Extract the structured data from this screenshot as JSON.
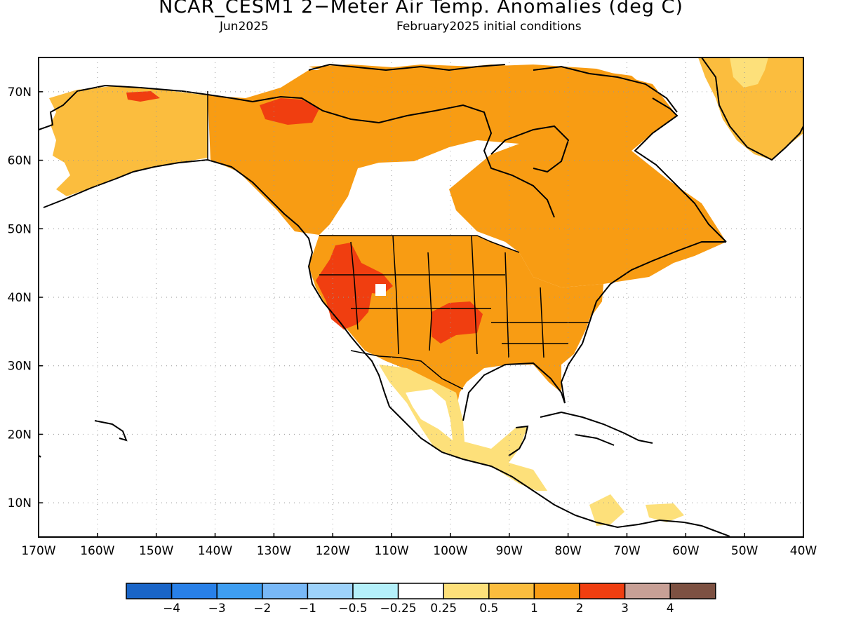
{
  "header": {
    "title": "NCAR_CESM1 2−Meter Air Temp. Anomalies (deg C)",
    "subtitle_left": "Jun2025",
    "subtitle_right": "February2025 initial conditions"
  },
  "map": {
    "lon_range": [
      -170,
      -40
    ],
    "lat_range": [
      5,
      75
    ],
    "grid": "dotted",
    "lon_ticks": [
      "170W",
      "160W",
      "150W",
      "140W",
      "130W",
      "120W",
      "110W",
      "100W",
      "90W",
      "80W",
      "70W",
      "60W",
      "50W",
      "40W"
    ],
    "lat_ticks": [
      "10N",
      "20N",
      "30N",
      "40N",
      "50N",
      "60N",
      "70N"
    ]
  },
  "legend": {
    "colors": [
      "#1965c8",
      "#2880e8",
      "#3e9ef2",
      "#78b8f7",
      "#9dd2fa",
      "#b4f0fa",
      "#ffffff",
      "#fde07a",
      "#fbbd3e",
      "#f89c13",
      "#f03e10",
      "#c8a096",
      "#7d5142"
    ],
    "labels": [
      "−4",
      "−3",
      "−2",
      "−1",
      "−0.5",
      "−0.25",
      "0.25",
      "0.5",
      "1",
      "2",
      "3",
      "4"
    ]
  }
}
